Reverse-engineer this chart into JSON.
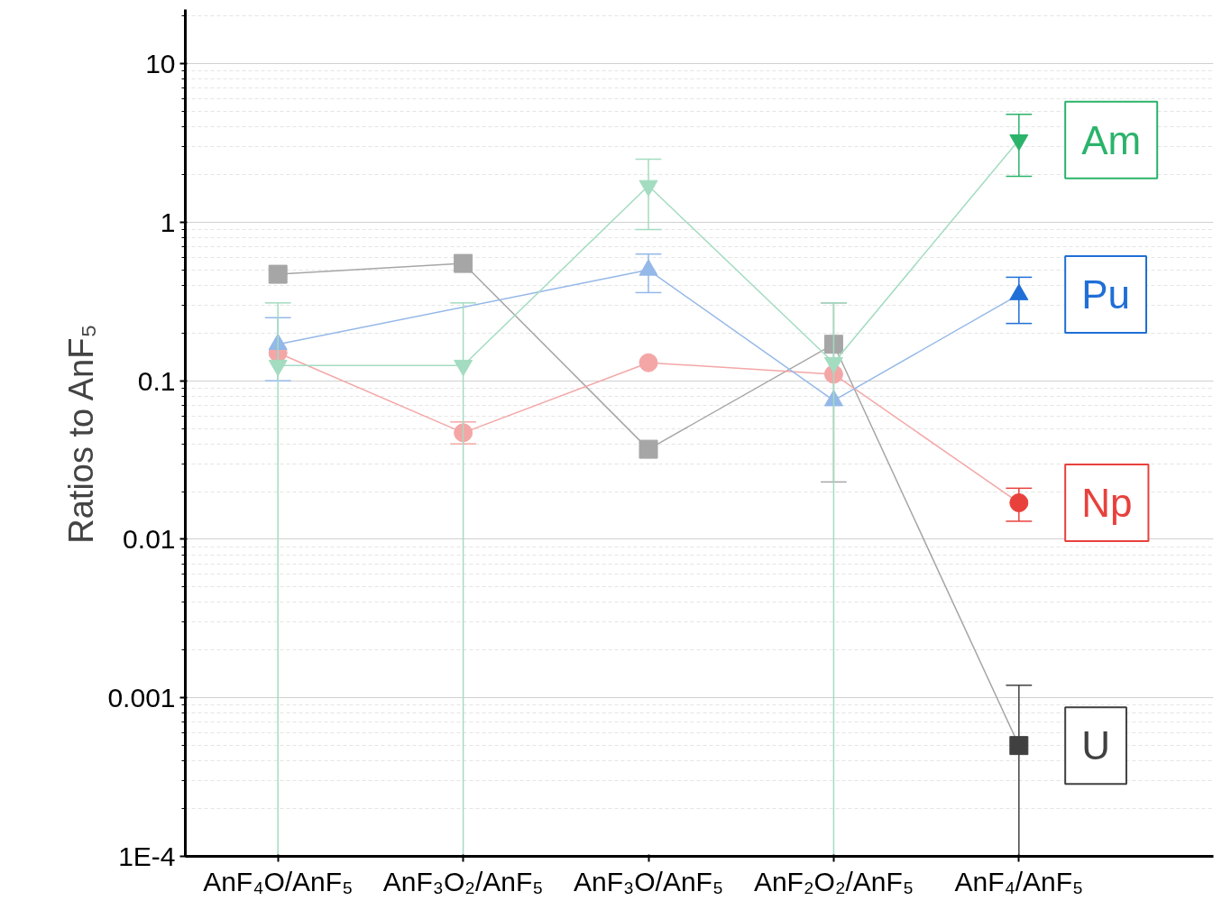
{
  "chart_data": {
    "type": "line",
    "ylabel": "Ratios to AnF₅",
    "log": true,
    "grid": "y",
    "categories": [
      "AnF₄O/AnF₅",
      "AnF₃O₂/AnF₅",
      "AnF₃O/AnF₅",
      "AnF₂O₂/AnF₅",
      "AnF₄/AnF₅"
    ],
    "ylim": [
      0.0001,
      22
    ],
    "yticks": [
      {
        "value": 0.0001,
        "label": "1E-4"
      },
      0.001,
      0.01,
      0.1,
      1,
      10
    ],
    "series": [
      {
        "name": "Am",
        "color": "#a3dcc0",
        "marker": "triangle_down",
        "colors": [
          "#a3dcc0",
          "#a3dcc0",
          "#a3dcc0",
          "#a3dcc0",
          "#2bb36b"
        ],
        "values": [
          0.125,
          0.125,
          1.7,
          0.13,
          3.3
        ],
        "errors": [
          [
            0.0001,
            0.31
          ],
          [
            0.0001,
            0.31
          ],
          [
            0.9,
            2.5
          ],
          [
            0.0001,
            0.31
          ],
          [
            1.95,
            4.8
          ]
        ]
      },
      {
        "name": "Pu",
        "color": "#94b8e8",
        "marker": "triangle",
        "colors": [
          "#94b8e8",
          "#94b8e8",
          "#94b8e8",
          "#94b8e8",
          "#1f6fd6"
        ],
        "values": [
          0.17,
          null,
          0.5,
          0.075,
          0.35
        ],
        "errors": [
          [
            0.1,
            0.25
          ],
          null,
          [
            0.36,
            0.63
          ],
          null,
          [
            0.23,
            0.45
          ]
        ]
      },
      {
        "name": "Np",
        "color": "#f4a6a6",
        "marker": "circle",
        "colors": [
          "#f4a6a6",
          "#f4a6a6",
          "#f4a6a6",
          "#f4a6a6",
          "#e8413c"
        ],
        "values": [
          0.15,
          0.047,
          0.13,
          0.11,
          0.017
        ],
        "errors": [
          null,
          [
            0.04,
            0.055
          ],
          null,
          null,
          [
            0.013,
            0.021
          ]
        ]
      },
      {
        "name": "U",
        "color": "#a6a6a6",
        "marker": "square",
        "colors": [
          "#a6a6a6",
          "#a6a6a6",
          "#a6a6a6",
          "#a6a6a6",
          "#404040"
        ],
        "values": [
          0.47,
          0.55,
          0.037,
          0.17,
          0.0005
        ],
        "errors": [
          null,
          null,
          null,
          [
            0.023,
            0.31
          ],
          [
            0.0001,
            0.0012
          ]
        ]
      }
    ]
  }
}
